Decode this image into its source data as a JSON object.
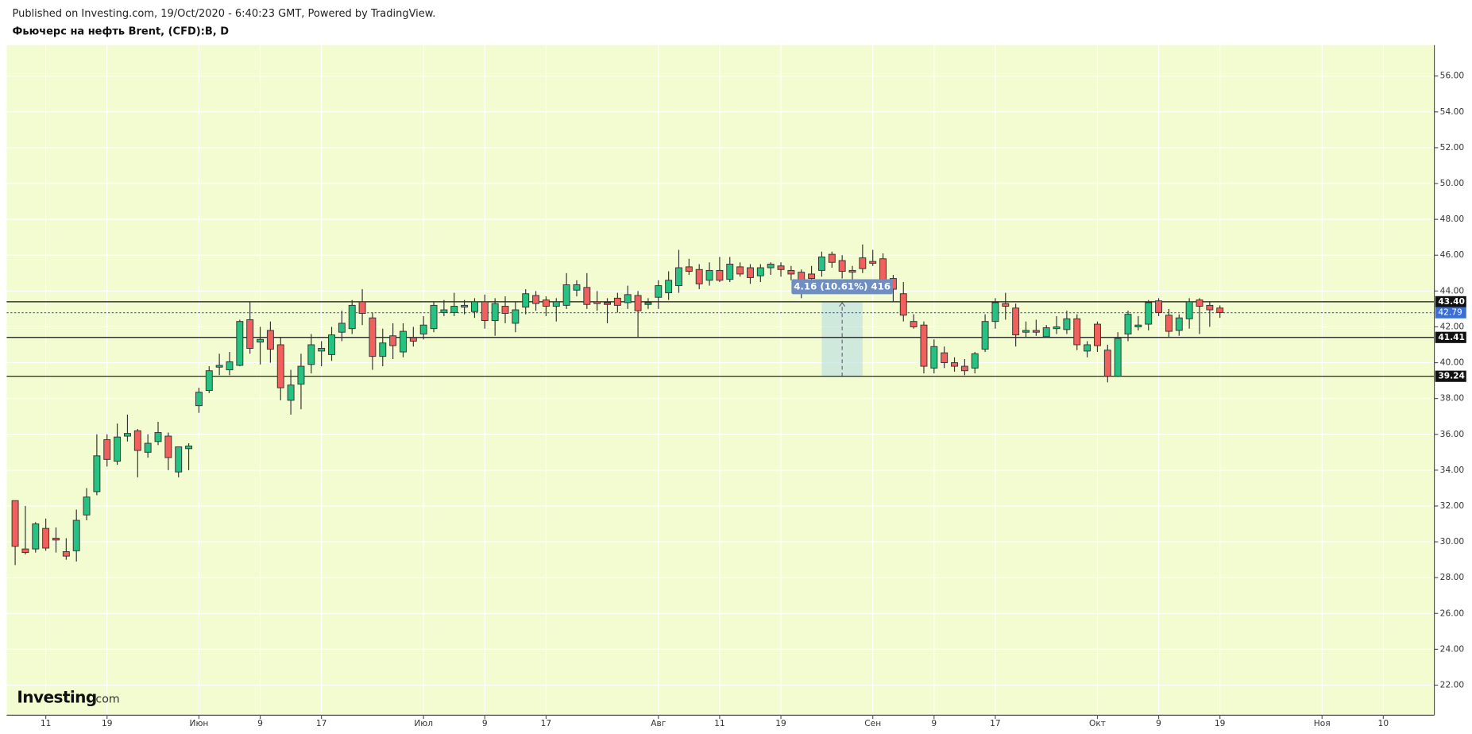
{
  "header": {
    "published": "Published on Investing.com, 19/Oct/2020 - 6:40:23 GMT, Powered by TradingView.",
    "symbol": "Фьючерс на нефть Brent, (CFD):B, D"
  },
  "logo": {
    "brand": "Investing",
    "suffix": ".com"
  },
  "chart_data": {
    "type": "candlestick",
    "up_color": "#26c281",
    "down_color": "#f2605d",
    "background": "#f3fcd0",
    "grid": true,
    "open": [
      32.3,
      29.6,
      29.6,
      30.75,
      30.2,
      29.45,
      29.5,
      31.5,
      32.8,
      35.7,
      34.5,
      35.9,
      36.2,
      35.0,
      35.6,
      35.9,
      33.9,
      35.2,
      37.6,
      38.45,
      39.75,
      39.6,
      39.85,
      42.4,
      41.15,
      41.8,
      41.0,
      37.9,
      38.8,
      39.9,
      40.65,
      40.45,
      41.7,
      41.9,
      43.4,
      42.5,
      40.35,
      41.5,
      40.6,
      41.4,
      41.6,
      41.9,
      42.8,
      42.8,
      43.1,
      42.85,
      43.4,
      42.35,
      43.15,
      42.2,
      43.1,
      43.75,
      43.5,
      43.15,
      43.2,
      44.05,
      44.2,
      43.4,
      43.35,
      43.6,
      43.35,
      43.75,
      43.25,
      43.65,
      43.9,
      44.3,
      45.35,
      45.2,
      44.6,
      45.15,
      44.65,
      45.35,
      45.3,
      44.85,
      45.3,
      45.4,
      45.15,
      45.05,
      44.95,
      45.15,
      46.05,
      45.7,
      45.15,
      45.85,
      45.65,
      45.8,
      44.7,
      43.85,
      42.3,
      42.1,
      39.7,
      40.55,
      40.0,
      39.8,
      39.7,
      40.75,
      42.3,
      43.3,
      43.05,
      41.7,
      41.8,
      41.45,
      41.9,
      41.85,
      42.45,
      40.65,
      42.15,
      40.7,
      39.25,
      41.6,
      42.0,
      42.15,
      43.45,
      42.65,
      41.8,
      42.45,
      43.5,
      43.2,
      43.05
    ],
    "high": [
      32.3,
      32.0,
      31.1,
      31.3,
      30.8,
      30.2,
      31.8,
      33.0,
      36.0,
      36.0,
      36.6,
      37.1,
      36.3,
      36.0,
      36.7,
      36.1,
      35.3,
      35.5,
      38.6,
      39.8,
      40.5,
      40.6,
      42.4,
      43.4,
      42.0,
      42.3,
      41.4,
      39.6,
      40.5,
      41.6,
      41.2,
      42.0,
      42.9,
      43.5,
      44.1,
      42.8,
      41.9,
      42.2,
      42.2,
      42.0,
      42.6,
      43.4,
      43.5,
      43.9,
      43.5,
      43.6,
      43.8,
      43.6,
      43.7,
      43.4,
      44.1,
      44.0,
      43.7,
      43.6,
      45.0,
      44.6,
      45.0,
      44.0,
      43.6,
      43.9,
      44.3,
      44.0,
      43.6,
      44.6,
      45.1,
      46.3,
      45.8,
      45.5,
      45.6,
      45.9,
      45.9,
      45.6,
      45.5,
      45.5,
      45.6,
      45.6,
      45.4,
      45.2,
      45.4,
      46.2,
      46.2,
      46.0,
      45.4,
      46.6,
      46.3,
      46.1,
      44.9,
      44.5,
      42.7,
      42.3,
      41.3,
      40.9,
      40.3,
      40.2,
      40.6,
      42.7,
      43.6,
      43.9,
      43.3,
      42.3,
      42.4,
      42.1,
      42.6,
      42.9,
      42.7,
      41.2,
      42.3,
      41.0,
      41.7,
      42.9,
      42.6,
      43.5,
      43.6,
      43.0,
      42.7,
      43.6,
      43.6,
      43.4,
      43.2
    ],
    "low": [
      28.7,
      29.3,
      29.4,
      29.5,
      29.4,
      29.0,
      28.9,
      31.2,
      32.6,
      34.2,
      34.3,
      35.6,
      33.6,
      34.7,
      35.4,
      34.0,
      33.6,
      34.0,
      37.2,
      38.3,
      39.3,
      39.3,
      39.8,
      40.5,
      39.9,
      40.0,
      37.9,
      37.1,
      37.4,
      39.4,
      39.8,
      40.1,
      41.2,
      41.6,
      42.1,
      39.6,
      39.8,
      40.2,
      40.3,
      40.9,
      41.3,
      41.7,
      42.6,
      42.6,
      42.7,
      42.5,
      41.9,
      41.5,
      42.2,
      41.7,
      42.7,
      42.9,
      42.6,
      42.3,
      43.0,
      43.7,
      43.0,
      42.9,
      42.2,
      42.8,
      43.0,
      41.4,
      43.0,
      43.0,
      43.5,
      43.9,
      44.9,
      44.1,
      44.3,
      44.5,
      44.5,
      44.8,
      44.4,
      44.5,
      44.9,
      44.8,
      44.6,
      43.6,
      44.3,
      44.8,
      45.3,
      44.7,
      44.6,
      45.0,
      45.4,
      44.3,
      43.4,
      42.3,
      41.9,
      39.4,
      39.4,
      39.7,
      39.5,
      39.3,
      39.4,
      40.6,
      41.9,
      42.4,
      40.9,
      41.4,
      41.5,
      41.4,
      41.6,
      41.6,
      40.7,
      40.3,
      40.6,
      38.9,
      39.2,
      41.2,
      41.8,
      41.8,
      42.6,
      41.4,
      41.5,
      41.9,
      41.6,
      42.0,
      42.5
    ],
    "close": [
      29.75,
      29.4,
      31.0,
      29.65,
      30.1,
      29.2,
      31.2,
      32.5,
      34.8,
      34.6,
      35.85,
      36.05,
      35.1,
      35.5,
      36.1,
      34.7,
      35.3,
      35.35,
      38.35,
      39.55,
      39.85,
      40.05,
      42.3,
      40.8,
      41.3,
      40.75,
      38.6,
      38.75,
      39.8,
      41.0,
      40.8,
      41.55,
      42.2,
      43.2,
      42.75,
      40.35,
      41.1,
      40.95,
      41.75,
      41.2,
      42.1,
      43.2,
      42.95,
      43.15,
      43.2,
      43.4,
      42.35,
      43.3,
      42.75,
      42.95,
      43.85,
      43.3,
      43.15,
      43.4,
      44.35,
      44.35,
      43.25,
      43.3,
      43.25,
      43.2,
      43.8,
      42.9,
      43.35,
      44.3,
      44.6,
      45.3,
      45.1,
      44.4,
      45.15,
      44.6,
      45.5,
      44.95,
      44.75,
      45.3,
      45.5,
      45.2,
      44.95,
      44.35,
      44.7,
      45.9,
      45.6,
      45.1,
      45.05,
      45.25,
      45.55,
      44.55,
      44.1,
      42.65,
      42.0,
      39.8,
      40.9,
      40.0,
      39.8,
      39.55,
      40.5,
      42.3,
      43.35,
      43.15,
      41.55,
      41.8,
      41.7,
      41.95,
      42.0,
      42.45,
      41.0,
      41.0,
      40.95,
      39.25,
      41.35,
      42.7,
      42.1,
      43.35,
      42.8,
      41.75,
      42.5,
      43.4,
      43.15,
      42.95,
      42.8
    ],
    "xlim": [
      -0.83,
      139
    ],
    "xticks": [
      {
        "value": 3,
        "label": "11"
      },
      {
        "value": 9,
        "label": "19"
      },
      {
        "value": 18,
        "label": "Июн"
      },
      {
        "value": 24,
        "label": "9"
      },
      {
        "value": 30,
        "label": "17"
      },
      {
        "value": 40,
        "label": "Июл"
      },
      {
        "value": 46,
        "label": "9"
      },
      {
        "value": 52,
        "label": "17"
      },
      {
        "value": 63,
        "label": "Авг"
      },
      {
        "value": 69,
        "label": "11"
      },
      {
        "value": 75,
        "label": "19"
      },
      {
        "value": 84,
        "label": "Сен"
      },
      {
        "value": 90,
        "label": "9"
      },
      {
        "value": 96,
        "label": "17"
      },
      {
        "value": 106,
        "label": "Окт"
      },
      {
        "value": 112,
        "label": "9"
      },
      {
        "value": 118,
        "label": "19"
      },
      {
        "value": 128,
        "label": "Ноя"
      },
      {
        "value": 134,
        "label": "10"
      }
    ],
    "ylim": [
      20.32,
      57.73
    ],
    "yticks": [
      {
        "value": 22,
        "label": "22.00"
      },
      {
        "value": 24,
        "label": "24.00"
      },
      {
        "value": 26,
        "label": "26.00"
      },
      {
        "value": 28,
        "label": "28.00"
      },
      {
        "value": 30,
        "label": "30.00"
      },
      {
        "value": 32,
        "label": "32.00"
      },
      {
        "value": 34,
        "label": "34.00"
      },
      {
        "value": 36,
        "label": "36.00"
      },
      {
        "value": 38,
        "label": "38.00"
      },
      {
        "value": 40,
        "label": "40.00"
      },
      {
        "value": 42,
        "label": "42.00"
      },
      {
        "value": 44,
        "label": "44.00"
      },
      {
        "value": 46,
        "label": "46.00"
      },
      {
        "value": 48,
        "label": "48.00"
      },
      {
        "value": 50,
        "label": "50.00"
      },
      {
        "value": 52,
        "label": "52.00"
      },
      {
        "value": 54,
        "label": "54.00"
      },
      {
        "value": 56,
        "label": "56.00"
      }
    ],
    "price_lines": [
      {
        "value": 43.4,
        "label": "43.40"
      },
      {
        "value": 41.41,
        "label": "41.41"
      },
      {
        "value": 39.24,
        "label": "39.24"
      }
    ],
    "last_price": {
      "value": 42.79,
      "label": "42.79",
      "color": "#3b6fd6"
    },
    "measure": {
      "label": "4.16 (10.61%) 416",
      "from": 39.24,
      "to": 43.4,
      "start": 79,
      "end": 83
    }
  }
}
